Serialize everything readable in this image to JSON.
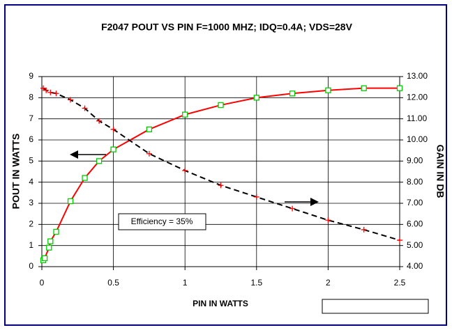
{
  "chart_data": {
    "type": "line",
    "title": "F2047  POUT VS PIN F=1000 MHZ; IDQ=0.4A; VDS=28V",
    "xlabel": "PIN IN WATTS",
    "ylabel": "POUT IN WATTS",
    "y2label": "GAIN IN DB",
    "annotation": "Efficiency = 35%",
    "xlim": [
      0,
      2.5
    ],
    "xticks": [
      0,
      0.5,
      1,
      1.5,
      2,
      2.5
    ],
    "ylim": [
      0,
      9
    ],
    "yticks": [
      0,
      1,
      2,
      3,
      4,
      5,
      6,
      7,
      8,
      9
    ],
    "y2lim": [
      4,
      13
    ],
    "y2ticks": [
      {
        "value": 4,
        "label": "4.00"
      },
      {
        "value": 5,
        "label": "5.00"
      },
      {
        "value": 6,
        "label": "6.00"
      },
      {
        "value": 7,
        "label": "7.00"
      },
      {
        "value": 8,
        "label": "8.00"
      },
      {
        "value": 9,
        "label": "9.00"
      },
      {
        "value": 10,
        "label": "10.00"
      },
      {
        "value": 11,
        "label": "11.00"
      },
      {
        "value": 12,
        "label": "12.00"
      },
      {
        "value": 13,
        "label": "13.00"
      }
    ],
    "grid": true,
    "legend": "lower right",
    "series": [
      {
        "name": "POUT",
        "color": "#ff0000",
        "marker": "square",
        "marker_color": "#00cc00",
        "dashed": false,
        "x": [
          0.01,
          0.02,
          0.05,
          0.06,
          0.1,
          0.2,
          0.3,
          0.4,
          0.5,
          0.75,
          1.0,
          1.25,
          1.5,
          1.75,
          2.0,
          2.25,
          2.5
        ],
        "values": [
          0.3,
          0.4,
          0.9,
          1.2,
          1.65,
          3.1,
          4.2,
          5.0,
          5.55,
          6.5,
          7.2,
          7.65,
          8.0,
          8.2,
          8.35,
          8.45,
          8.45
        ]
      },
      {
        "name": "GAIN",
        "color": "#000000",
        "marker": "plus",
        "marker_color": "#ff0000",
        "dashed": true,
        "axis": "y2",
        "x": [
          0.01,
          0.03,
          0.06,
          0.1,
          0.2,
          0.3,
          0.4,
          0.5,
          0.75,
          1.0,
          1.25,
          1.5,
          1.75,
          2.0,
          2.25,
          2.5
        ],
        "values": [
          12.45,
          12.35,
          12.25,
          12.2,
          11.9,
          11.5,
          10.9,
          10.5,
          9.35,
          8.55,
          7.85,
          7.3,
          6.75,
          6.2,
          5.75,
          5.25
        ]
      }
    ]
  }
}
